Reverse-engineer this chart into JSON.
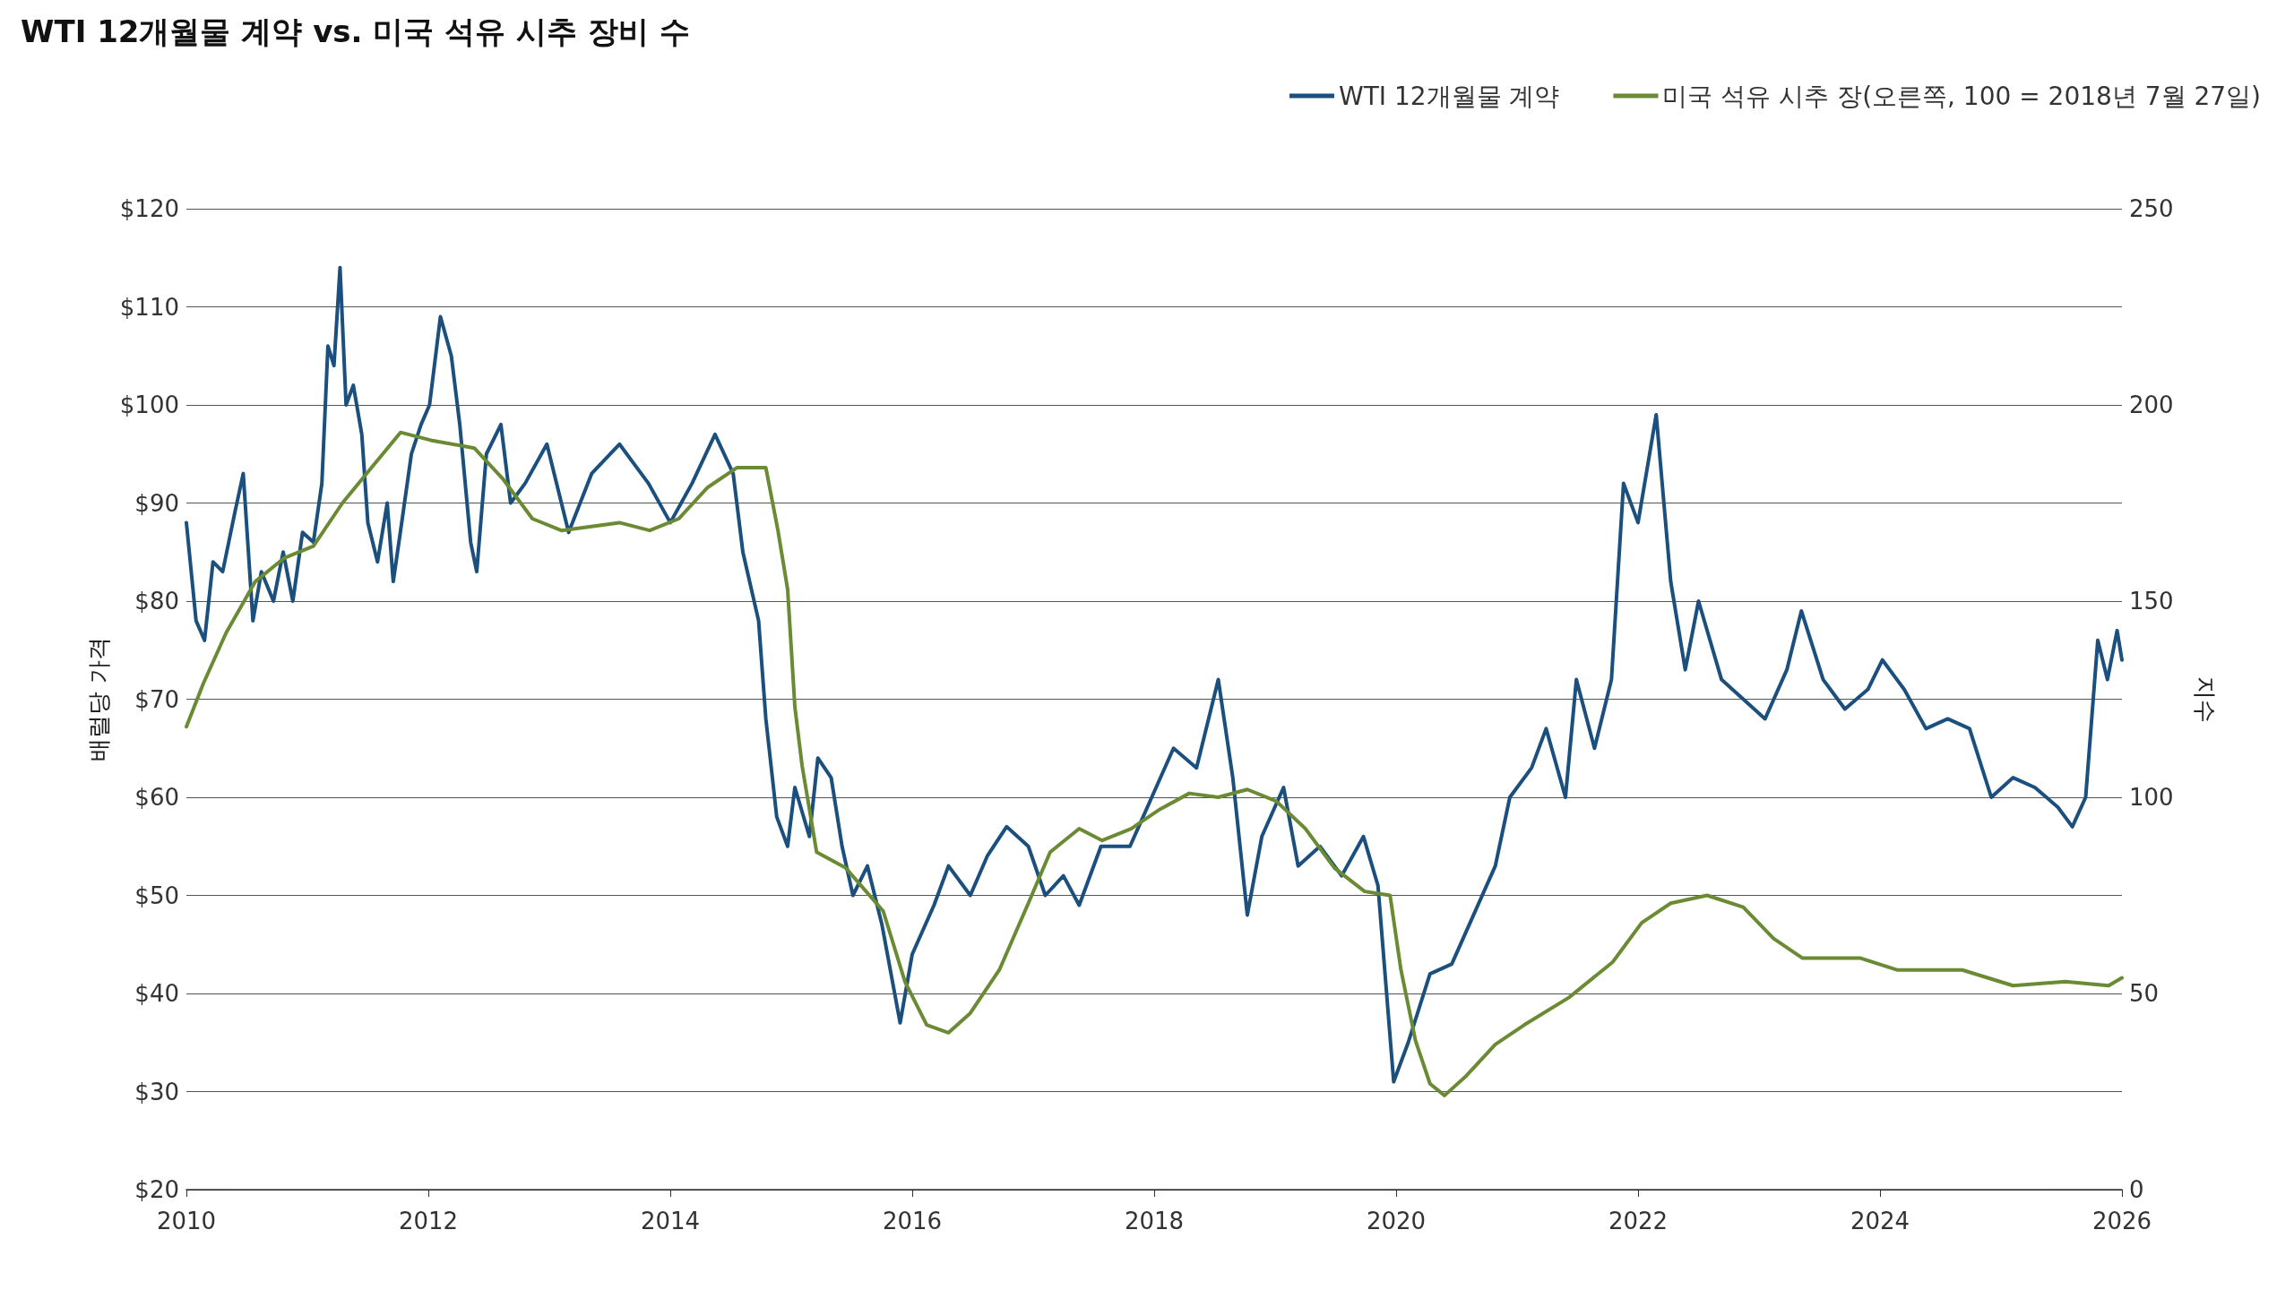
{
  "chart_data": {
    "type": "line",
    "title": "WTI 12개월물 계약 vs. 미국 석유 시추 장비 수",
    "ylabel": "배럴당 가격",
    "y2label": "지수",
    "xlim": [
      2010,
      2026
    ],
    "xticks": [
      2010,
      2012,
      2014,
      2016,
      2018,
      2020,
      2022,
      2024,
      2026
    ],
    "ylim": [
      20,
      120
    ],
    "yticks": [
      {
        "value": 20,
        "label": "$20"
      },
      {
        "value": 30,
        "label": "$30"
      },
      {
        "value": 40,
        "label": "$40"
      },
      {
        "value": 50,
        "label": "$50"
      },
      {
        "value": 60,
        "label": "$60"
      },
      {
        "value": 70,
        "label": "$70"
      },
      {
        "value": 80,
        "label": "$80"
      },
      {
        "value": 90,
        "label": "$90"
      },
      {
        "value": 100,
        "label": "$100"
      },
      {
        "value": 110,
        "label": "$110"
      },
      {
        "value": 120,
        "label": "$120"
      }
    ],
    "y2lim": [
      0,
      250
    ],
    "y2ticks": [
      0,
      50,
      100,
      150,
      200,
      250
    ],
    "grid": "y",
    "legend": "top right",
    "marker": "none",
    "line_style": "solid",
    "series": [
      {
        "name": "WTI 12개월물 계약",
        "color": "#1b4f7e",
        "x": [
          2010.0,
          2010.08,
          2010.15,
          2010.22,
          2010.3,
          2010.4,
          2010.47,
          2010.55,
          2010.62,
          2010.72,
          2010.8,
          2010.88,
          2010.96,
          2011.05,
          2011.12,
          2011.17,
          2011.22,
          2011.27,
          2011.32,
          2011.38,
          2011.45,
          2011.5,
          2011.58,
          2011.66,
          2011.71,
          2011.78,
          2011.86,
          2011.94,
          2012.01,
          2012.1,
          2012.19,
          2012.26,
          2012.35,
          2012.4,
          2012.48,
          2012.6,
          2012.68,
          2012.8,
          2012.98,
          2013.16,
          2013.35,
          2013.58,
          2013.82,
          2014.0,
          2014.18,
          2014.37,
          2014.52,
          2014.6,
          2014.73,
          2014.79,
          2014.88,
          2014.97,
          2015.03,
          2015.15,
          2015.22,
          2015.33,
          2015.42,
          2015.51,
          2015.63,
          2015.75,
          2015.9,
          2016.0,
          2016.18,
          2016.3,
          2016.48,
          2016.62,
          2016.78,
          2016.96,
          2017.1,
          2017.25,
          2017.38,
          2017.56,
          2017.8,
          2017.98,
          2018.16,
          2018.35,
          2018.53,
          2018.65,
          2018.77,
          2018.89,
          2019.07,
          2019.19,
          2019.37,
          2019.55,
          2019.73,
          2019.85,
          2019.98,
          2020.1,
          2020.28,
          2020.46,
          2020.64,
          2020.82,
          2020.94,
          2021.12,
          2021.24,
          2021.4,
          2021.49,
          2021.64,
          2021.78,
          2021.88,
          2022.0,
          2022.15,
          2022.27,
          2022.39,
          2022.5,
          2022.69,
          2022.87,
          2023.05,
          2023.23,
          2023.35,
          2023.53,
          2023.71,
          2023.9,
          2024.02,
          2024.2,
          2024.38,
          2024.56,
          2024.74,
          2024.92,
          2025.1,
          2025.28,
          2025.47,
          2025.59,
          2025.7,
          2025.8,
          2025.88,
          2025.96,
          2026.0
        ],
        "values": [
          88,
          78,
          76,
          84,
          83,
          89,
          93,
          78,
          83,
          80,
          85,
          80,
          87,
          86,
          92,
          106,
          104,
          114,
          100,
          102,
          97,
          88,
          84,
          90,
          82,
          88,
          95,
          98,
          100,
          109,
          105,
          98,
          86,
          83,
          95,
          98,
          90,
          92,
          96,
          87,
          93,
          96,
          92,
          88,
          92,
          97,
          93,
          85,
          78,
          68,
          58,
          55,
          61,
          56,
          64,
          62,
          55,
          50,
          53,
          47,
          37,
          44,
          49,
          53,
          50,
          54,
          57,
          55,
          50,
          52,
          49,
          55,
          55,
          60,
          65,
          63,
          72,
          62,
          48,
          56,
          61,
          53,
          55,
          52,
          56,
          51,
          31,
          35,
          42,
          43,
          48,
          53,
          60,
          63,
          67,
          60,
          72,
          65,
          72,
          92,
          88,
          99,
          82,
          73,
          80,
          72,
          70,
          68,
          73,
          79,
          72,
          69,
          71,
          74,
          71,
          67,
          68,
          67,
          60,
          62,
          61,
          59,
          57,
          60,
          76,
          72,
          77,
          74
        ]
      },
      {
        "name": "미국 석유 시추 장(오른쪽, 100 = 2018년 7월 27일)",
        "color": "#6a8a34",
        "axis": "y2",
        "x": [
          2010.0,
          2010.14,
          2010.33,
          2010.57,
          2010.81,
          2011.05,
          2011.29,
          2011.53,
          2011.77,
          2012.02,
          2012.38,
          2012.62,
          2012.86,
          2013.1,
          2013.58,
          2013.83,
          2014.07,
          2014.31,
          2014.55,
          2014.79,
          2014.89,
          2014.97,
          2015.03,
          2015.09,
          2015.21,
          2015.45,
          2015.76,
          2015.94,
          2016.12,
          2016.3,
          2016.48,
          2016.72,
          2016.96,
          2017.14,
          2017.38,
          2017.57,
          2017.81,
          2018.05,
          2018.29,
          2018.53,
          2018.77,
          2019.01,
          2019.25,
          2019.49,
          2019.74,
          2019.95,
          2020.04,
          2020.16,
          2020.28,
          2020.4,
          2020.58,
          2020.82,
          2021.06,
          2021.43,
          2021.79,
          2022.03,
          2022.27,
          2022.57,
          2022.87,
          2023.12,
          2023.36,
          2023.84,
          2024.14,
          2024.68,
          2025.1,
          2025.53,
          2025.89,
          2026.0
        ],
        "values": [
          118,
          129,
          142,
          155,
          161,
          164,
          175,
          184,
          193,
          191,
          189,
          181,
          171,
          168,
          170,
          168,
          171,
          179,
          184,
          184,
          168,
          153,
          123,
          108,
          86,
          82,
          71,
          53,
          42,
          40,
          45,
          56,
          73,
          86,
          92,
          89,
          92,
          97,
          101,
          100,
          102,
          99,
          92,
          82,
          76,
          75,
          56,
          38,
          27,
          24,
          29,
          37,
          42,
          49,
          58,
          68,
          73,
          75,
          72,
          64,
          59,
          59,
          56,
          56,
          52,
          53,
          52,
          54
        ]
      }
    ]
  }
}
